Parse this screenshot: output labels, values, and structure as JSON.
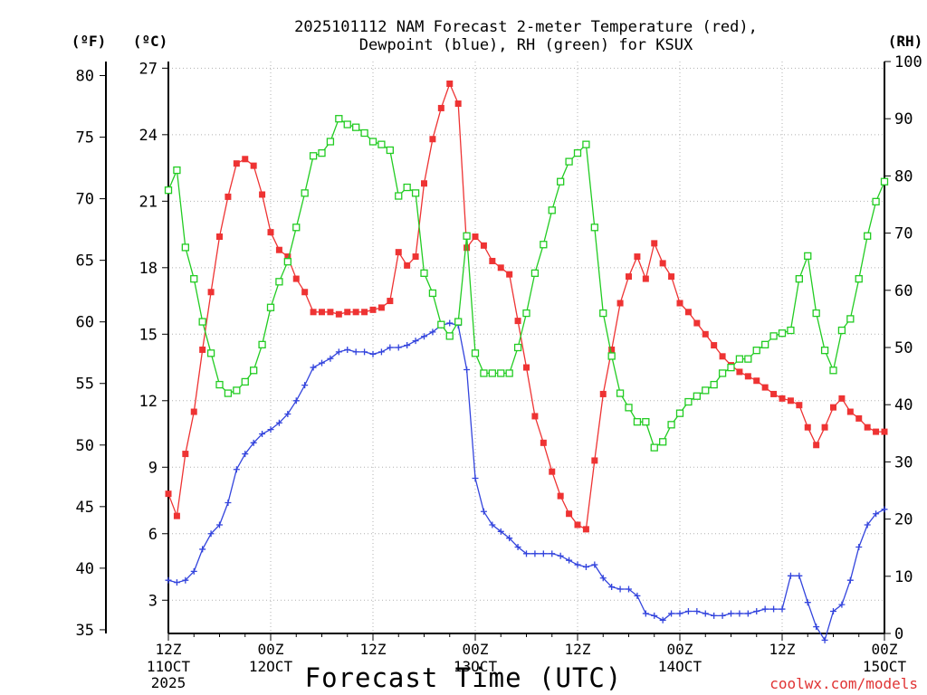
{
  "chart_data": {
    "type": "line",
    "title_line1": "2025101112 NAM Forecast 2-meter Temperature (red),",
    "title_line2": "Dewpoint (blue), RH (green) for KSUX",
    "xlabel": "Forecast Time (UTC)",
    "watermark": "coolwx.com/models",
    "unit_labels": {
      "fahrenheit": "(ºF)",
      "celsius": "(ºC)",
      "rh": "(RH)"
    },
    "x_hours_range": [
      0,
      84
    ],
    "celsius_range": [
      1.5,
      27.3
    ],
    "rh_range": [
      0,
      100
    ],
    "fahrenheit_ticks": [
      35,
      40,
      45,
      50,
      55,
      60,
      65,
      70,
      75,
      80
    ],
    "fahrenheit_tick_labels": [
      "35",
      "40",
      "45",
      "50",
      "55",
      "60",
      "65",
      "70",
      "75",
      "80"
    ],
    "celsius_ticks": [
      3,
      6,
      9,
      12,
      15,
      18,
      21,
      24,
      27
    ],
    "celsius_tick_labels": [
      "3",
      "6",
      "9",
      "12",
      "15",
      "18",
      "21",
      "24",
      "27"
    ],
    "rh_ticks": [
      0,
      10,
      20,
      30,
      40,
      50,
      60,
      70,
      80,
      90,
      100
    ],
    "rh_tick_labels": [
      "0",
      "10",
      "20",
      "30",
      "40",
      "50",
      "60",
      "70",
      "80",
      "90",
      "100"
    ],
    "x_ticks": [
      {
        "hour": 0,
        "line1": "12Z",
        "line2": "11OCT",
        "line3": "2025"
      },
      {
        "hour": 12,
        "line1": "00Z",
        "line2": "12OCT",
        "line3": ""
      },
      {
        "hour": 24,
        "line1": "12Z",
        "line2": "",
        "line3": ""
      },
      {
        "hour": 36,
        "line1": "00Z",
        "line2": "13OCT",
        "line3": ""
      },
      {
        "hour": 48,
        "line1": "12Z",
        "line2": "",
        "line3": ""
      },
      {
        "hour": 60,
        "line1": "00Z",
        "line2": "14OCT",
        "line3": ""
      },
      {
        "hour": 72,
        "line1": "12Z",
        "line2": "",
        "line3": ""
      },
      {
        "hour": 84,
        "line1": "00Z",
        "line2": "15OCT",
        "line3": ""
      }
    ],
    "hours": [
      0,
      1,
      2,
      3,
      4,
      5,
      6,
      7,
      8,
      9,
      10,
      11,
      12,
      13,
      14,
      15,
      16,
      17,
      18,
      19,
      20,
      21,
      22,
      23,
      24,
      25,
      26,
      27,
      28,
      29,
      30,
      31,
      32,
      33,
      34,
      35,
      36,
      37,
      38,
      39,
      40,
      41,
      42,
      43,
      44,
      45,
      46,
      47,
      48,
      49,
      50,
      51,
      52,
      53,
      54,
      55,
      56,
      57,
      58,
      59,
      60,
      61,
      62,
      63,
      64,
      65,
      66,
      67,
      68,
      69,
      70,
      71,
      72,
      73,
      74,
      75,
      76,
      77,
      78,
      79,
      80,
      81,
      82,
      83,
      84
    ],
    "series": [
      {
        "name": "Temperature",
        "unit": "C",
        "color": "#ee3333",
        "marker": "filled-square",
        "values": [
          7.8,
          6.8,
          9.6,
          11.5,
          14.3,
          16.9,
          19.4,
          21.2,
          22.7,
          22.9,
          22.6,
          21.3,
          19.6,
          18.8,
          18.5,
          17.5,
          16.9,
          16.0,
          16.0,
          16.0,
          15.9,
          16.0,
          16.0,
          16.0,
          16.1,
          16.2,
          16.5,
          18.7,
          18.1,
          18.5,
          21.8,
          23.8,
          25.2,
          26.3,
          25.4,
          18.9,
          19.4,
          19.0,
          18.3,
          18.0,
          17.7,
          15.6,
          13.5,
          11.3,
          10.1,
          8.8,
          7.7,
          6.9,
          6.4,
          6.2,
          9.3,
          12.3,
          14.3,
          16.4,
          17.6,
          18.5,
          17.5,
          19.1,
          18.2,
          17.6,
          16.4,
          16.0,
          15.5,
          15.0,
          14.5,
          14.0,
          13.6,
          13.3,
          13.1,
          12.9,
          12.6,
          12.3,
          12.1,
          12.0,
          11.8,
          10.8,
          10.0,
          10.8,
          11.7,
          12.1,
          11.5,
          11.2,
          10.8,
          10.6,
          10.6
        ]
      },
      {
        "name": "Dewpoint",
        "unit": "C",
        "color": "#3344dd",
        "marker": "plus",
        "values": [
          3.9,
          3.8,
          3.9,
          4.3,
          5.3,
          6.0,
          6.4,
          7.4,
          8.9,
          9.6,
          10.1,
          10.5,
          10.7,
          11.0,
          11.4,
          12.0,
          12.7,
          13.5,
          13.7,
          13.9,
          14.2,
          14.3,
          14.2,
          14.2,
          14.1,
          14.2,
          14.4,
          14.4,
          14.5,
          14.7,
          14.9,
          15.1,
          15.4,
          15.5,
          15.4,
          13.4,
          8.5,
          7.0,
          6.4,
          6.1,
          5.8,
          5.4,
          5.1,
          5.1,
          5.1,
          5.1,
          5.0,
          4.8,
          4.6,
          4.5,
          4.6,
          4.0,
          3.6,
          3.5,
          3.5,
          3.2,
          2.4,
          2.3,
          2.1,
          2.4,
          2.4,
          2.5,
          2.5,
          2.4,
          2.3,
          2.3,
          2.4,
          2.4,
          2.4,
          2.5,
          2.6,
          2.6,
          2.6,
          4.1,
          4.1,
          2.9,
          1.8,
          1.2,
          2.5,
          2.8,
          3.9,
          5.4,
          6.4,
          6.9,
          7.1
        ]
      },
      {
        "name": "RH",
        "unit": "%",
        "color": "#22cc22",
        "marker": "open-square",
        "values": [
          77.5,
          81.0,
          67.5,
          62.0,
          54.5,
          49.0,
          43.5,
          42.0,
          42.5,
          44.0,
          46.0,
          50.5,
          57.0,
          61.5,
          65.0,
          71.0,
          77.0,
          83.5,
          84.0,
          86.0,
          90.0,
          89.0,
          88.5,
          87.5,
          86.0,
          85.5,
          84.5,
          76.5,
          78.0,
          77.0,
          63.0,
          59.5,
          54.0,
          52.0,
          54.5,
          69.5,
          49.0,
          45.5,
          45.5,
          45.5,
          45.5,
          50.0,
          56.0,
          63.0,
          68.0,
          74.0,
          79.0,
          82.5,
          84.0,
          85.5,
          71.0,
          56.0,
          48.5,
          42.0,
          39.5,
          37.0,
          37.0,
          32.5,
          33.5,
          36.5,
          38.5,
          40.5,
          41.5,
          42.5,
          43.5,
          45.5,
          46.5,
          48.0,
          48.0,
          49.5,
          50.5,
          52.0,
          52.5,
          53.0,
          62.0,
          66.0,
          56.0,
          49.5,
          46.0,
          53.0,
          55.0,
          62.0,
          69.5,
          75.5,
          79.0
        ]
      }
    ]
  }
}
